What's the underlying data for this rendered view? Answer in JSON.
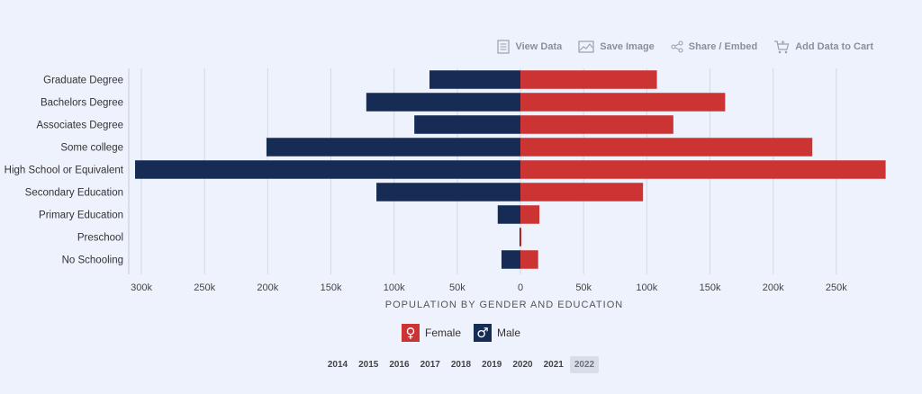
{
  "toolbar": {
    "view_data": "View Data",
    "save_image": "Save Image",
    "share_embed": "Share / Embed",
    "add_to_cart": "Add Data to Cart"
  },
  "colors": {
    "female": "#cc3333",
    "male": "#162c54",
    "grid": "#d3d8e4"
  },
  "chart_data": {
    "type": "bar",
    "orientation": "horizontal",
    "diverging": true,
    "categories": [
      "Graduate Degree",
      "Bachelors Degree",
      "Associates Degree",
      "Some college",
      "High School or Equivalent",
      "Secondary Education",
      "Primary Education",
      "Preschool",
      "No Schooling"
    ],
    "series": [
      {
        "name": "Female",
        "values": [
          108000,
          162000,
          121000,
          231000,
          289000,
          97000,
          15000,
          500,
          14000
        ]
      },
      {
        "name": "Male",
        "values": [
          72000,
          122000,
          84000,
          201000,
          305000,
          114000,
          18000,
          500,
          15000
        ]
      }
    ],
    "xlabel": "POPULATION BY GENDER AND EDUCATION",
    "ticks": [
      "300k",
      "250k",
      "200k",
      "150k",
      "100k",
      "50k",
      "0",
      "50k",
      "100k",
      "150k",
      "200k",
      "250k"
    ],
    "xlim": [
      -310000,
      290000
    ],
    "grid": true,
    "legend": "bottom"
  },
  "legend": {
    "female": "Female",
    "male": "Male",
    "female_symbol": "♀",
    "male_symbol": "♂"
  },
  "years": [
    "2014",
    "2015",
    "2016",
    "2017",
    "2018",
    "2019",
    "2020",
    "2021",
    "2022"
  ],
  "selected_year": "2022"
}
